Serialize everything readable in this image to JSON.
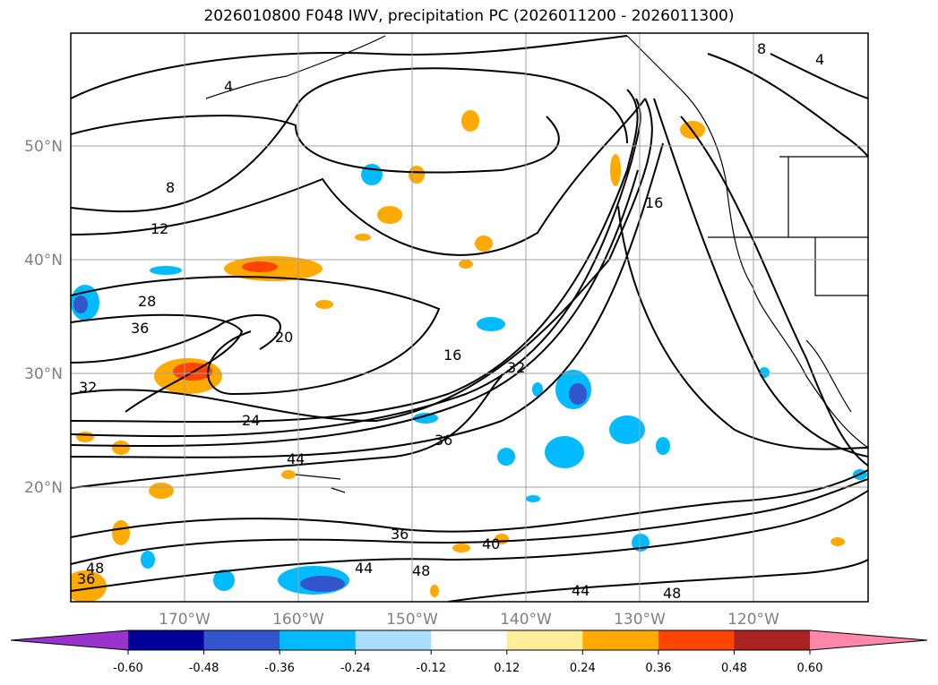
{
  "title": "2026010800 F048 IWV, precipitation PC (2026011200 - 2026011300)",
  "lat_labels": [
    "50°N",
    "40°N",
    "30°N",
    "20°N"
  ],
  "lon_labels": [
    "170°W",
    "160°W",
    "150°W",
    "140°W",
    "130°W",
    "120°W"
  ],
  "contour_labels": [
    "4",
    "8",
    "12",
    "16",
    "20",
    "24",
    "28",
    "32",
    "36",
    "40",
    "44",
    "48"
  ],
  "colorbar": {
    "ticks": [
      "-0.60",
      "-0.48",
      "-0.36",
      "-0.24",
      "-0.12",
      "0.12",
      "0.24",
      "0.36",
      "0.48",
      "0.60"
    ],
    "colors": [
      "#9933cc",
      "#000099",
      "#3355cc",
      "#00bbff",
      "#aaddff",
      "#ffffff",
      "#ffee99",
      "#ffaa00",
      "#ff4400",
      "#aa2222",
      "#ff88aa"
    ]
  },
  "colors": {
    "land_line": "#000000",
    "grid": "#a0a0a0",
    "axis_text": "#808080"
  }
}
